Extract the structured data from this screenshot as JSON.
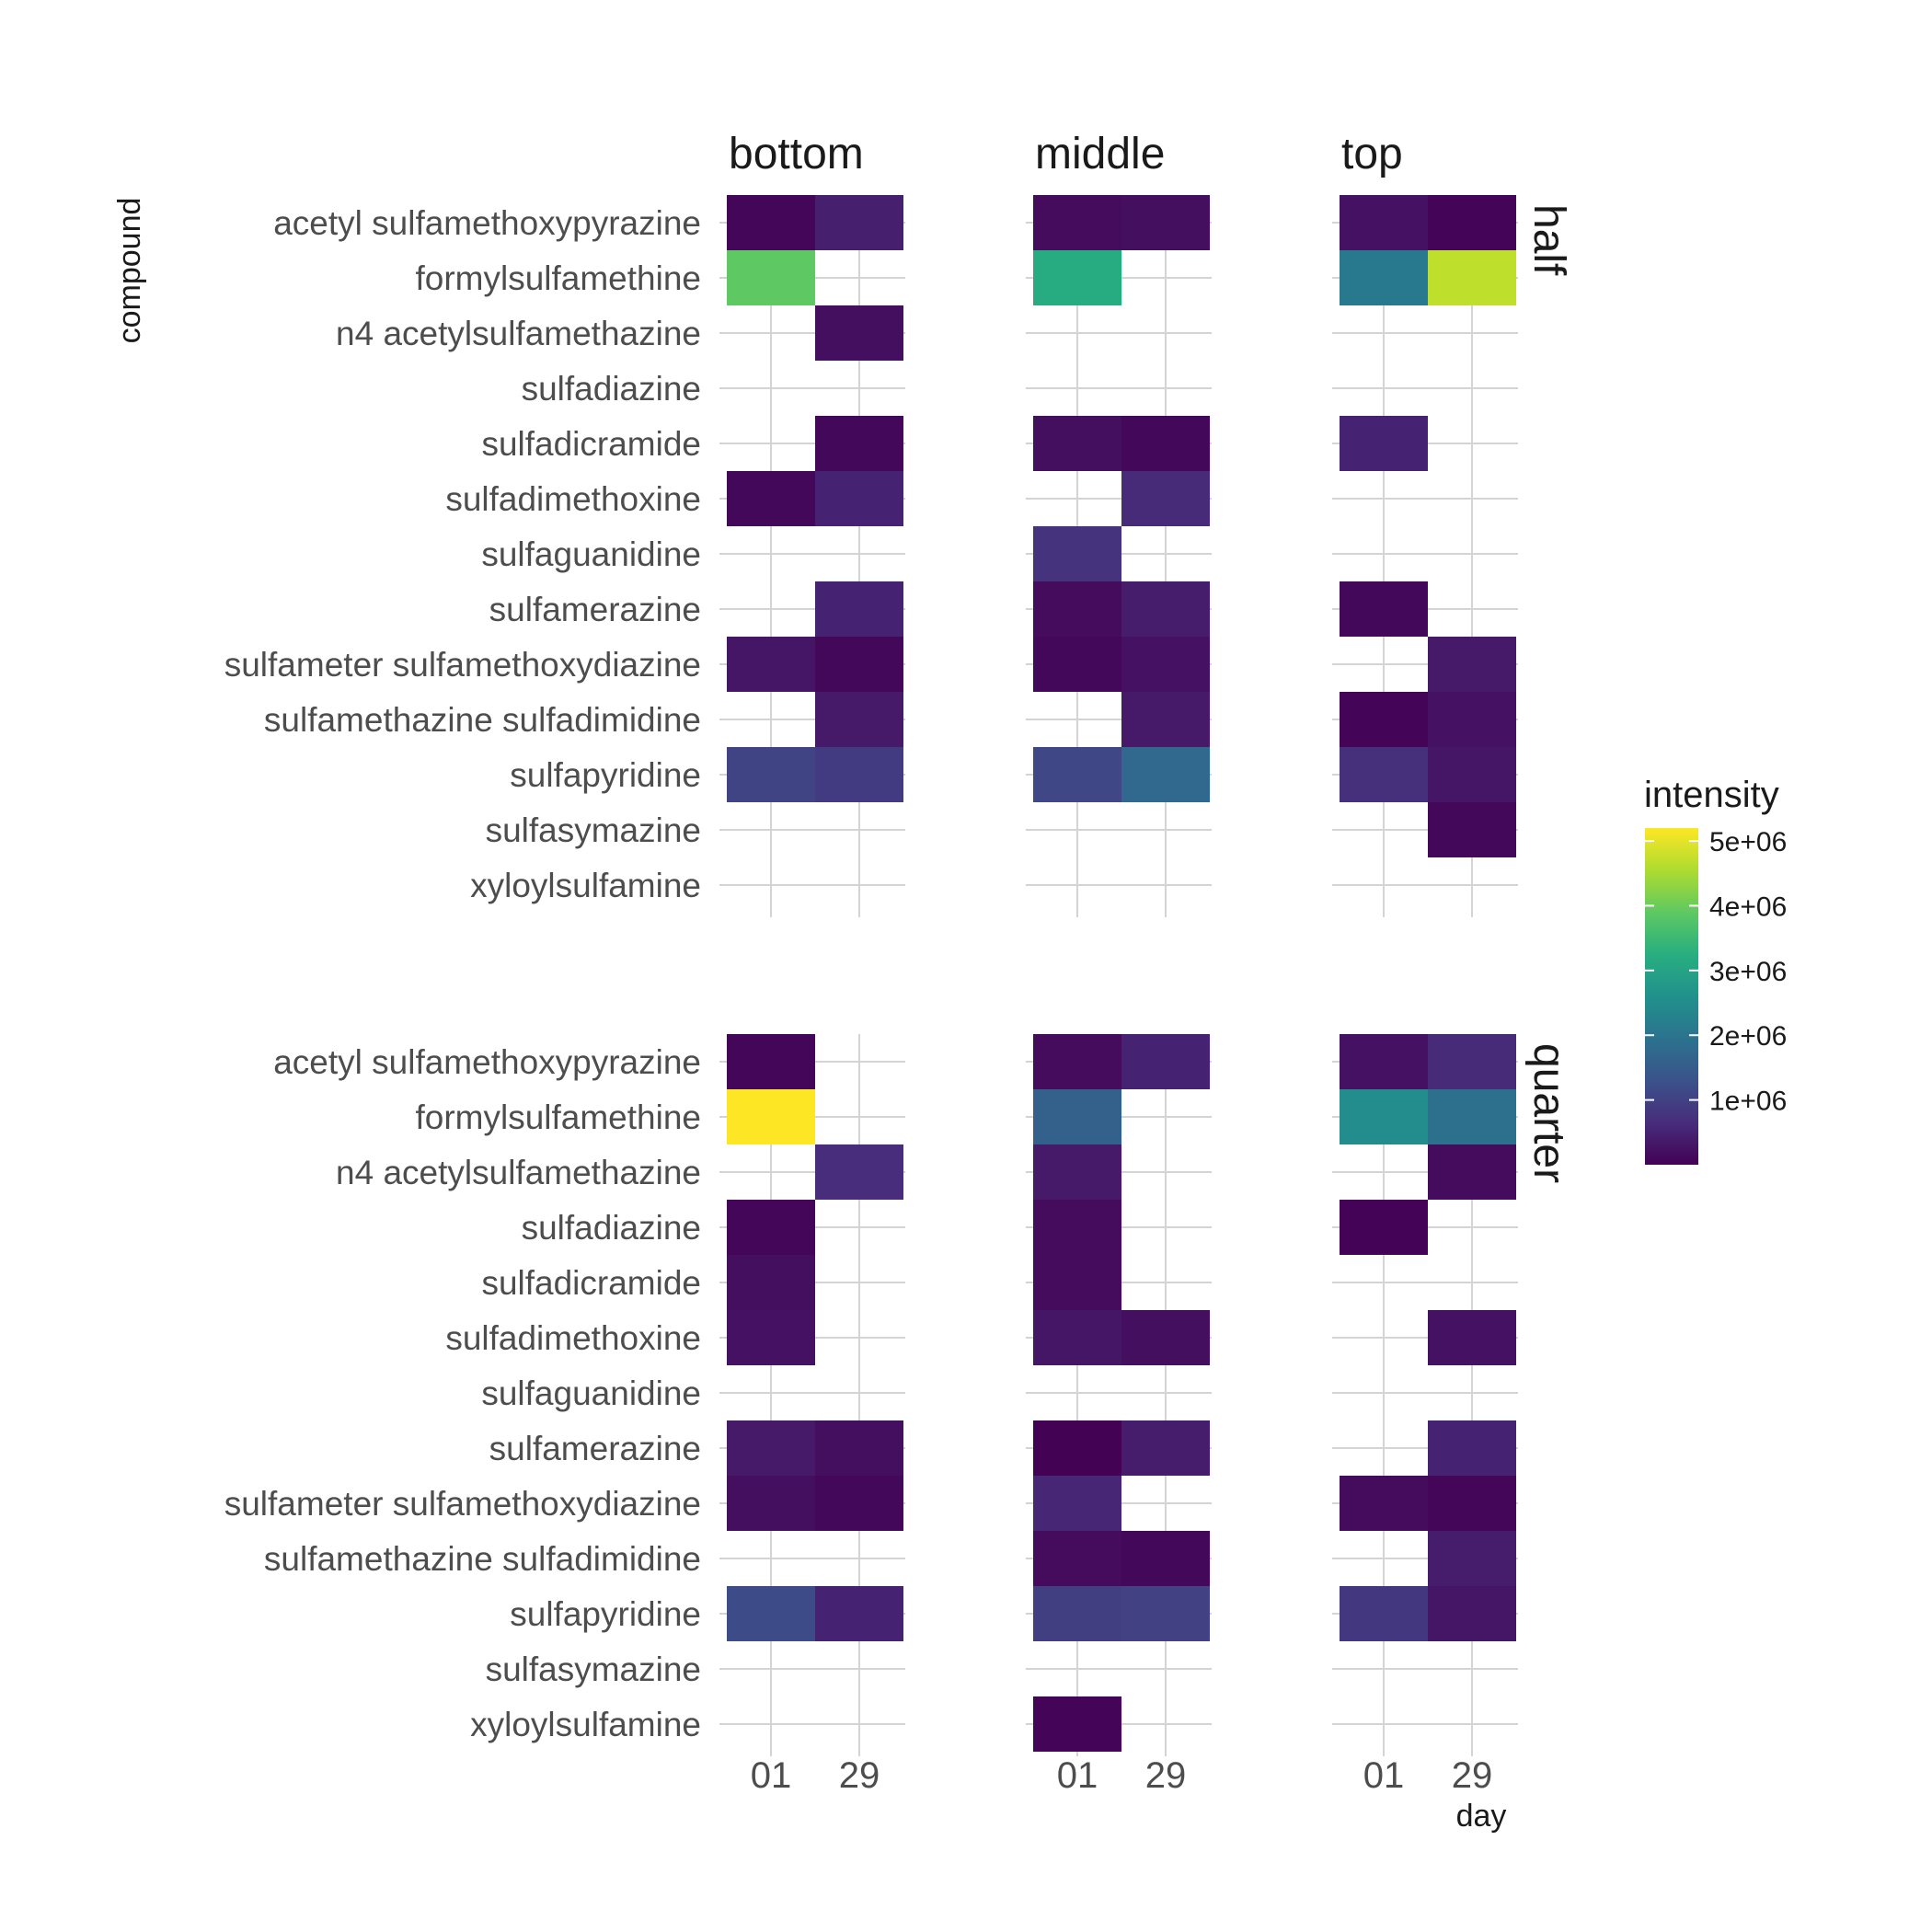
{
  "chart_data": {
    "type": "heatmap",
    "xlabel": "day",
    "ylabel": "compound",
    "x_categories": [
      "01",
      "29"
    ],
    "y_categories": [
      "acetyl sulfamethoxypyrazine",
      "formylsulfamethine",
      "n4 acetylsulfamethazine",
      "sulfadiazine",
      "sulfadicramide",
      "sulfadimethoxine",
      "sulfaguanidine",
      "sulfamerazine",
      "sulfameter sulfamethoxydiazine",
      "sulfamethazine sulfadimidine",
      "sulfapyridine",
      "sulfasymazine",
      "xyloylsulfamine"
    ],
    "facet_cols": [
      "bottom",
      "middle",
      "top"
    ],
    "facet_rows": [
      "half",
      "quarter"
    ],
    "legend": {
      "title": "intensity",
      "min": 0,
      "max": 5200000,
      "ticks": [
        1000000,
        2000000,
        3000000,
        4000000,
        5000000
      ],
      "tick_labels": [
        "1e+06",
        "2e+06",
        "3e+06",
        "4e+06",
        "5e+06"
      ],
      "colormap": "viridis",
      "placement": "right"
    },
    "panels": [
      {
        "row": "half",
        "col": "bottom",
        "cells": [
          {
            "compound": "acetyl sulfamethoxypyrazine",
            "day": "01",
            "value": 80000
          },
          {
            "compound": "acetyl sulfamethoxypyrazine",
            "day": "29",
            "value": 450000
          },
          {
            "compound": "formylsulfamethine",
            "day": "01",
            "value": 3900000
          },
          {
            "compound": "n4 acetylsulfamethazine",
            "day": "29",
            "value": 200000
          },
          {
            "compound": "sulfadicramide",
            "day": "29",
            "value": 100000
          },
          {
            "compound": "sulfadimethoxine",
            "day": "01",
            "value": 100000
          },
          {
            "compound": "sulfadimethoxine",
            "day": "29",
            "value": 500000
          },
          {
            "compound": "sulfamerazine",
            "day": "29",
            "value": 500000
          },
          {
            "compound": "sulfameter sulfamethoxydiazine",
            "day": "01",
            "value": 300000
          },
          {
            "compound": "sulfameter sulfamethoxydiazine",
            "day": "29",
            "value": 100000
          },
          {
            "compound": "sulfamethazine sulfadimidine",
            "day": "29",
            "value": 350000
          },
          {
            "compound": "sulfapyridine",
            "day": "01",
            "value": 1050000
          },
          {
            "compound": "sulfapyridine",
            "day": "29",
            "value": 900000
          }
        ]
      },
      {
        "row": "half",
        "col": "middle",
        "cells": [
          {
            "compound": "acetyl sulfamethoxypyrazine",
            "day": "01",
            "value": 150000
          },
          {
            "compound": "acetyl sulfamethoxypyrazine",
            "day": "29",
            "value": 200000
          },
          {
            "compound": "formylsulfamethine",
            "day": "01",
            "value": 3200000
          },
          {
            "compound": "sulfadicramide",
            "day": "01",
            "value": 200000
          },
          {
            "compound": "sulfadicramide",
            "day": "29",
            "value": 100000
          },
          {
            "compound": "sulfadimethoxine",
            "day": "29",
            "value": 600000
          },
          {
            "compound": "sulfaguanidine",
            "day": "01",
            "value": 750000
          },
          {
            "compound": "sulfamerazine",
            "day": "01",
            "value": 150000
          },
          {
            "compound": "sulfamerazine",
            "day": "29",
            "value": 400000
          },
          {
            "compound": "sulfameter sulfamethoxydiazine",
            "day": "01",
            "value": 100000
          },
          {
            "compound": "sulfameter sulfamethoxydiazine",
            "day": "29",
            "value": 250000
          },
          {
            "compound": "sulfamethazine sulfadimidine",
            "day": "29",
            "value": 350000
          },
          {
            "compound": "sulfapyridine",
            "day": "01",
            "value": 1100000
          },
          {
            "compound": "sulfapyridine",
            "day": "29",
            "value": 1750000
          }
        ]
      },
      {
        "row": "half",
        "col": "top",
        "cells": [
          {
            "compound": "acetyl sulfamethoxypyrazine",
            "day": "01",
            "value": 250000
          },
          {
            "compound": "acetyl sulfamethoxypyrazine",
            "day": "29",
            "value": 50000
          },
          {
            "compound": "formylsulfamethine",
            "day": "01",
            "value": 2100000
          },
          {
            "compound": "formylsulfamethine",
            "day": "29",
            "value": 4700000
          },
          {
            "compound": "sulfadicramide",
            "day": "01",
            "value": 500000
          },
          {
            "compound": "sulfamerazine",
            "day": "01",
            "value": 100000
          },
          {
            "compound": "sulfameter sulfamethoxydiazine",
            "day": "29",
            "value": 350000
          },
          {
            "compound": "sulfamethazine sulfadimidine",
            "day": "01",
            "value": 50000
          },
          {
            "compound": "sulfamethazine sulfadimidine",
            "day": "29",
            "value": 250000
          },
          {
            "compound": "sulfapyridine",
            "day": "01",
            "value": 700000
          },
          {
            "compound": "sulfapyridine",
            "day": "29",
            "value": 300000
          },
          {
            "compound": "sulfasymazine",
            "day": "29",
            "value": 100000
          }
        ]
      },
      {
        "row": "quarter",
        "col": "bottom",
        "cells": [
          {
            "compound": "acetyl sulfamethoxypyrazine",
            "day": "01",
            "value": 80000
          },
          {
            "compound": "formylsulfamethine",
            "day": "01",
            "value": 5200000
          },
          {
            "compound": "n4 acetylsulfamethazine",
            "day": "29",
            "value": 650000
          },
          {
            "compound": "sulfadiazine",
            "day": "01",
            "value": 80000
          },
          {
            "compound": "sulfadicramide",
            "day": "01",
            "value": 200000
          },
          {
            "compound": "sulfadimethoxine",
            "day": "01",
            "value": 250000
          },
          {
            "compound": "sulfamerazine",
            "day": "01",
            "value": 350000
          },
          {
            "compound": "sulfamerazine",
            "day": "29",
            "value": 200000
          },
          {
            "compound": "sulfameter sulfamethoxydiazine",
            "day": "01",
            "value": 200000
          },
          {
            "compound": "sulfameter sulfamethoxydiazine",
            "day": "29",
            "value": 100000
          },
          {
            "compound": "sulfapyridine",
            "day": "01",
            "value": 1200000
          },
          {
            "compound": "sulfapyridine",
            "day": "29",
            "value": 500000
          }
        ]
      },
      {
        "row": "quarter",
        "col": "middle",
        "cells": [
          {
            "compound": "acetyl sulfamethoxypyrazine",
            "day": "01",
            "value": 150000
          },
          {
            "compound": "acetyl sulfamethoxypyrazine",
            "day": "29",
            "value": 500000
          },
          {
            "compound": "formylsulfamethine",
            "day": "01",
            "value": 1600000
          },
          {
            "compound": "n4 acetylsulfamethazine",
            "day": "01",
            "value": 350000
          },
          {
            "compound": "sulfadiazine",
            "day": "01",
            "value": 150000
          },
          {
            "compound": "sulfadicramide",
            "day": "01",
            "value": 150000
          },
          {
            "compound": "sulfadimethoxine",
            "day": "01",
            "value": 300000
          },
          {
            "compound": "sulfadimethoxine",
            "day": "29",
            "value": 200000
          },
          {
            "compound": "sulfamerazine",
            "day": "01",
            "value": 20000
          },
          {
            "compound": "sulfamerazine",
            "day": "29",
            "value": 400000
          },
          {
            "compound": "sulfameter sulfamethoxydiazine",
            "day": "01",
            "value": 550000
          },
          {
            "compound": "sulfamethazine sulfadimidine",
            "day": "01",
            "value": 150000
          },
          {
            "compound": "sulfamethazine sulfadimidine",
            "day": "29",
            "value": 100000
          },
          {
            "compound": "sulfapyridine",
            "day": "01",
            "value": 950000
          },
          {
            "compound": "sulfapyridine",
            "day": "29",
            "value": 1000000
          },
          {
            "compound": "xyloylsulfamine",
            "day": "01",
            "value": 50000
          }
        ]
      },
      {
        "row": "quarter",
        "col": "top",
        "cells": [
          {
            "compound": "acetyl sulfamethoxypyrazine",
            "day": "01",
            "value": 250000
          },
          {
            "compound": "acetyl sulfamethoxypyrazine",
            "day": "29",
            "value": 600000
          },
          {
            "compound": "formylsulfamethine",
            "day": "01",
            "value": 2500000
          },
          {
            "compound": "formylsulfamethine",
            "day": "29",
            "value": 1900000
          },
          {
            "compound": "n4 acetylsulfamethazine",
            "day": "29",
            "value": 150000
          },
          {
            "compound": "sulfadiazine",
            "day": "01",
            "value": 30000
          },
          {
            "compound": "sulfadimethoxine",
            "day": "29",
            "value": 250000
          },
          {
            "compound": "sulfamerazine",
            "day": "29",
            "value": 500000
          },
          {
            "compound": "sulfameter sulfamethoxydiazine",
            "day": "01",
            "value": 150000
          },
          {
            "compound": "sulfameter sulfamethoxydiazine",
            "day": "29",
            "value": 80000
          },
          {
            "compound": "sulfamethazine sulfadimidine",
            "day": "29",
            "value": 400000
          },
          {
            "compound": "sulfapyridine",
            "day": "01",
            "value": 850000
          },
          {
            "compound": "sulfapyridine",
            "day": "29",
            "value": 300000
          }
        ]
      }
    ]
  }
}
